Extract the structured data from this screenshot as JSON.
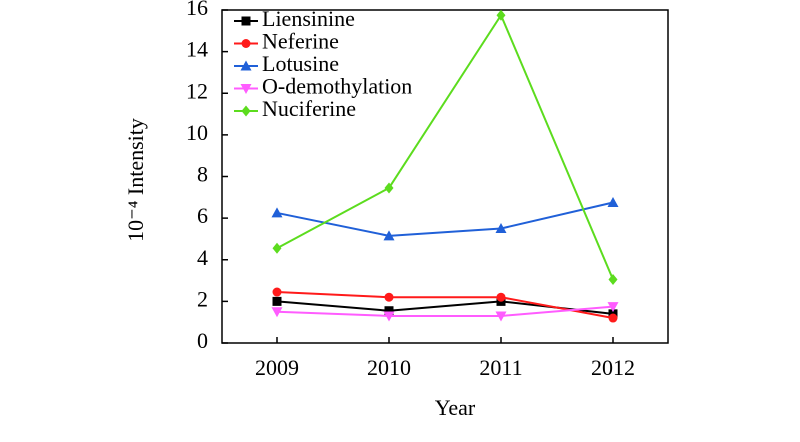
{
  "chart_data": {
    "type": "line",
    "x_label": "Year",
    "y_label": "10⁻⁴ Intensity",
    "categories": [
      "2009",
      "2010",
      "2011",
      "2012"
    ],
    "series": [
      {
        "name": "Liensinine",
        "color": "#000000",
        "marker": "square",
        "values": [
          2.0,
          1.55,
          2.0,
          1.4
        ]
      },
      {
        "name": "Neferine",
        "color": "#ff1a1a",
        "marker": "circle",
        "values": [
          2.45,
          2.2,
          2.2,
          1.2
        ]
      },
      {
        "name": "Lotusine",
        "color": "#2060d8",
        "marker": "triangle-up",
        "values": [
          6.25,
          5.15,
          5.5,
          6.75
        ]
      },
      {
        "name": "O-demothylation",
        "color": "#ff5cff",
        "marker": "triangle-down",
        "values": [
          1.5,
          1.3,
          1.3,
          1.75
        ]
      },
      {
        "name": "Nuciferine",
        "color": "#5cdc1e",
        "marker": "diamond",
        "values": [
          4.55,
          7.45,
          15.75,
          3.05
        ]
      }
    ],
    "ylim": [
      0,
      16
    ],
    "yticks": [
      0,
      2,
      4,
      6,
      8,
      10,
      12,
      14,
      16
    ],
    "legend": "upper-left"
  }
}
